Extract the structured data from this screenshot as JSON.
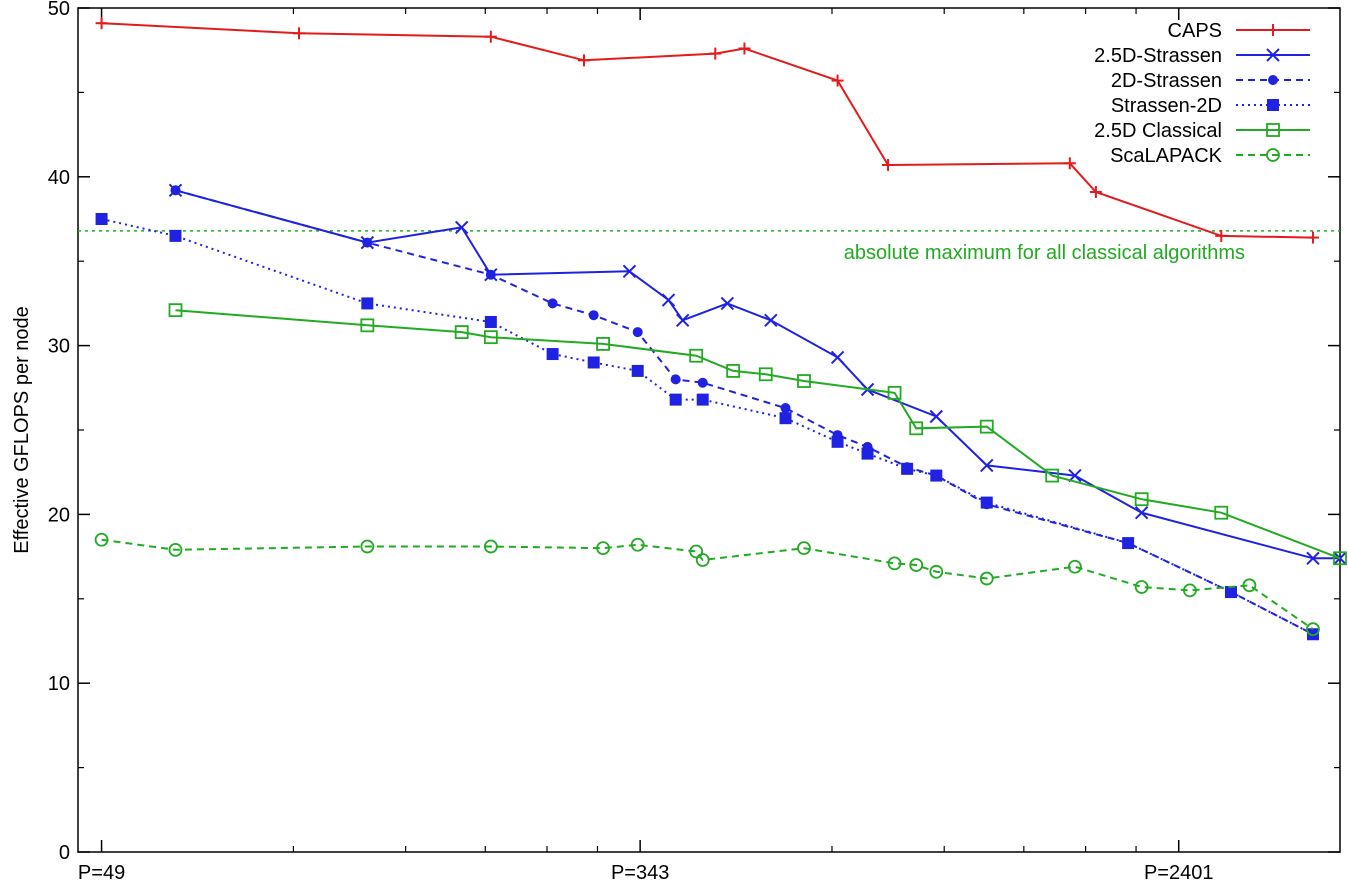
{
  "chart_data": {
    "type": "line",
    "xlabel": "",
    "ylabel": "Effective GFLOPS per node",
    "ylim": [
      0,
      50
    ],
    "x_scale": "log",
    "xlim": [
      45,
      4300
    ],
    "x_ticks": [
      {
        "value": 49,
        "label": "P=49"
      },
      {
        "value": 343,
        "label": "P=343"
      },
      {
        "value": 2401,
        "label": "P=2401"
      }
    ],
    "y_ticks": [
      {
        "value": 0,
        "label": "0"
      },
      {
        "value": 10,
        "label": "10"
      },
      {
        "value": 20,
        "label": "20"
      },
      {
        "value": 30,
        "label": "30"
      },
      {
        "value": 40,
        "label": "40"
      },
      {
        "value": 50,
        "label": "50"
      }
    ],
    "grid": false,
    "legend_position": "top-right",
    "reference_line": {
      "y": 36.8,
      "label": "absolute maximum for all classical algorithms",
      "color": "#22aa22"
    },
    "series": [
      {
        "name": "CAPS",
        "color": "#e41a1c",
        "dash": "",
        "marker": "plus",
        "x": [
          49,
          100,
          200,
          280,
          450,
          500,
          700,
          840,
          1620,
          1780,
          2800,
          3900
        ],
        "y": [
          49.1,
          48.5,
          48.3,
          46.9,
          47.3,
          47.6,
          45.7,
          40.7,
          40.8,
          39.1,
          36.5,
          36.4
        ]
      },
      {
        "name": "2.5D-Strassen",
        "color": "#1f22e0",
        "dash": "",
        "marker": "x",
        "x": [
          64,
          128,
          180,
          200,
          330,
          380,
          400,
          470,
          550,
          700,
          780,
          1000,
          1200,
          1650,
          2100,
          3900,
          4300
        ],
        "y": [
          39.2,
          36.1,
          37.0,
          34.2,
          34.4,
          32.7,
          31.5,
          32.5,
          31.5,
          29.3,
          27.4,
          25.8,
          22.9,
          22.3,
          20.1,
          17.4,
          17.4
        ]
      },
      {
        "name": "2D-Strassen",
        "color": "#1f22e0",
        "dash": "7,5",
        "marker": "dot",
        "x": [
          64,
          128,
          200,
          250,
          290,
          340,
          390,
          430,
          580,
          700,
          780,
          900,
          1000,
          1200,
          2000,
          2900,
          3900
        ],
        "y": [
          39.2,
          36.1,
          34.2,
          32.5,
          31.8,
          30.8,
          28.0,
          27.8,
          26.3,
          24.7,
          24.0,
          22.8,
          22.3,
          20.6,
          18.3,
          15.4,
          12.9
        ]
      },
      {
        "name": "Strassen-2D",
        "color": "#1f22e0",
        "dash": "2,4",
        "marker": "square-filled",
        "x": [
          49,
          64,
          128,
          200,
          250,
          290,
          340,
          390,
          430,
          580,
          700,
          780,
          900,
          1000,
          1200,
          2000,
          2900,
          3900
        ],
        "y": [
          37.5,
          36.5,
          32.5,
          31.4,
          29.5,
          29.0,
          28.5,
          26.8,
          26.8,
          25.7,
          24.3,
          23.6,
          22.7,
          22.3,
          20.7,
          18.3,
          15.4,
          12.9
        ]
      },
      {
        "name": "2.5D Classical",
        "color": "#22aa22",
        "dash": "",
        "marker": "square-open",
        "x": [
          64,
          128,
          180,
          200,
          300,
          420,
          480,
          540,
          620,
          860,
          930,
          1200,
          1520,
          2100,
          2800,
          4300
        ],
        "y": [
          32.1,
          31.2,
          30.8,
          30.5,
          30.1,
          29.4,
          28.5,
          28.3,
          27.9,
          27.2,
          25.1,
          25.2,
          22.3,
          20.9,
          20.1,
          17.4
        ]
      },
      {
        "name": "ScaLAPACK",
        "color": "#22aa22",
        "dash": "7,5",
        "marker": "circle-open",
        "x": [
          49,
          64,
          128,
          200,
          300,
          340,
          420,
          430,
          620,
          860,
          930,
          1000,
          1200,
          1650,
          2100,
          2500,
          3100,
          3900
        ],
        "y": [
          18.5,
          17.9,
          18.1,
          18.1,
          18.0,
          18.2,
          17.8,
          17.3,
          18.0,
          17.1,
          17.0,
          16.6,
          16.2,
          16.9,
          15.7,
          15.5,
          15.8,
          13.2
        ]
      }
    ]
  }
}
